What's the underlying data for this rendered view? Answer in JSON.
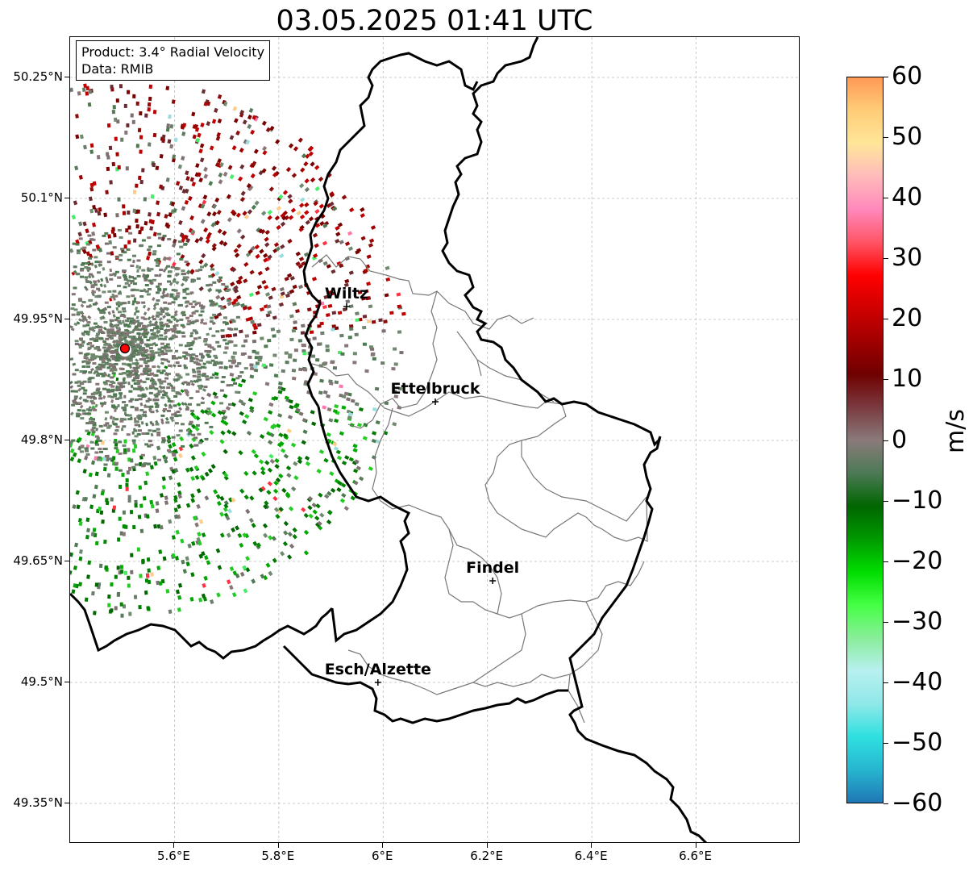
{
  "title": "03.05.2025 01:41 UTC",
  "info": {
    "product": "Product: 3.4° Radial Velocity",
    "data": "Data: RMIB"
  },
  "axes": {
    "y_labels": [
      "50.25°N",
      "50.1°N",
      "49.95°N",
      "49.8°N",
      "49.65°N",
      "49.5°N",
      "49.35°N"
    ],
    "x_labels": [
      "5.6°E",
      "5.8°E",
      "6°E",
      "6.2°E",
      "6.4°E",
      "6.6°E"
    ],
    "lat_range": [
      49.3,
      50.3
    ],
    "lon_range": [
      5.4,
      6.8
    ]
  },
  "colorbar": {
    "unit": "m/s",
    "tick_labels": [
      "60",
      "50",
      "40",
      "30",
      "20",
      "10",
      "0",
      "−10",
      "−20",
      "−30",
      "−40",
      "−50",
      "−60"
    ],
    "range": [
      -60,
      60
    ],
    "colors": [
      "#1f77b4",
      "#26b5cf",
      "#2fe0e0",
      "#8fe8e8",
      "#b8f0f0",
      "#88ee99",
      "#44ff44",
      "#00dd00",
      "#009900",
      "#006600",
      "#4d7a56",
      "#8a7a7a",
      "#7a3a40",
      "#700000",
      "#a00000",
      "#d00000",
      "#ff0000",
      "#ff5566",
      "#ff88bb",
      "#ffbbbb",
      "#ffe699",
      "#ffcc77",
      "#ff9955"
    ]
  },
  "cities": [
    {
      "name": "Wiltz",
      "lon": 5.93,
      "lat": 49.966
    },
    {
      "name": "Ettelbruck",
      "lon": 6.1,
      "lat": 49.848
    },
    {
      "name": "Findel",
      "lon": 6.21,
      "lat": 49.626
    },
    {
      "name": "Esch/Alzette",
      "lon": 5.99,
      "lat": 49.5
    }
  ],
  "radar_site": {
    "lon": 5.505,
    "lat": 49.914
  }
}
